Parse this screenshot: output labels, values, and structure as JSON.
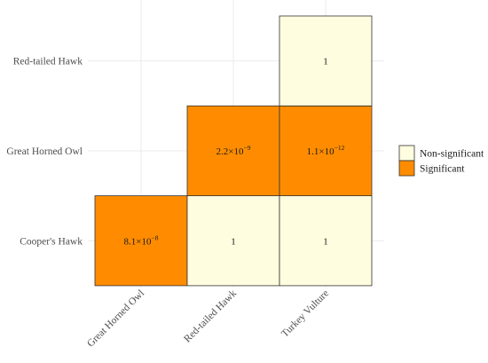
{
  "chart_data": {
    "type": "heatmap",
    "x_categories": [
      "Great Horned Owl",
      "Red-tailed Hawk",
      "Turkey Vulture"
    ],
    "y_categories": [
      "Cooper's Hawk",
      "Great Horned Owl",
      "Red-tailed Hawk"
    ],
    "cells": [
      {
        "x": "Great Horned Owl",
        "y": "Cooper's Hawk",
        "p_value": 8.1e-08,
        "mantissa": "8.1",
        "exponent": "−8",
        "display": "1",
        "class": "Significant"
      },
      {
        "x": "Red-tailed Hawk",
        "y": "Cooper's Hawk",
        "p_value": 1,
        "mantissa": "1",
        "exponent": "",
        "display": "1",
        "class": "Non-significant"
      },
      {
        "x": "Turkey Vulture",
        "y": "Cooper's Hawk",
        "p_value": 1,
        "mantissa": "1",
        "exponent": "",
        "display": "1",
        "class": "Non-significant"
      },
      {
        "x": "Red-tailed Hawk",
        "y": "Great Horned Owl",
        "p_value": 2.2e-09,
        "mantissa": "2.2",
        "exponent": "−9",
        "display": "1",
        "class": "Significant"
      },
      {
        "x": "Turkey Vulture",
        "y": "Great Horned Owl",
        "p_value": 1.1e-12,
        "mantissa": "1.1",
        "exponent": "−12",
        "display": "1",
        "class": "Significant"
      },
      {
        "x": "Turkey Vulture",
        "y": "Red-tailed Hawk",
        "p_value": 1,
        "mantissa": "1",
        "exponent": "",
        "display": "1",
        "class": "Non-significant"
      }
    ],
    "legend": {
      "position": "right",
      "items": [
        {
          "label": "Non-significant",
          "color": "#fffde0"
        },
        {
          "label": "Significant",
          "color": "#ff8c00"
        }
      ]
    },
    "grid": true,
    "title": "",
    "xlabel": "",
    "ylabel": ""
  },
  "colors": {
    "Significant": "#ff8c00",
    "Non-significant": "#fffde0",
    "grid": "#ebebeb",
    "border": "#333333"
  }
}
